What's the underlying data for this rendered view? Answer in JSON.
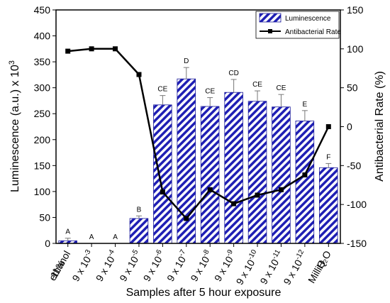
{
  "chart_data": {
    "type": "bar",
    "xlabel": "Samples after 5 hour exposure",
    "ylabel": "Luminescence (a.u.) x 10",
    "ylabel_sup": "3",
    "y2label": "Antibacterial Rate (%)",
    "ylim": [
      0,
      450
    ],
    "y2lim": [
      -150,
      150
    ],
    "yticks": [
      0,
      50,
      100,
      150,
      200,
      250,
      300,
      350,
      400,
      450
    ],
    "y2ticks": [
      -150,
      -100,
      -50,
      0,
      50,
      100,
      150
    ],
    "categories": [
      {
        "line1": "11%",
        "line1sup": "",
        "line2": "ethanol",
        "line2sup": ""
      },
      {
        "line1": "",
        "line1sup": "",
        "line2": "9 x 10",
        "line2sup": "-3"
      },
      {
        "line1": "",
        "line1sup": "",
        "line2": "9 x 10",
        "line2sup": "-4"
      },
      {
        "line1": "",
        "line1sup": "",
        "line2": "9 x 10",
        "line2sup": "-5"
      },
      {
        "line1": "",
        "line1sup": "",
        "line2": "9 x 10",
        "line2sup": "-6"
      },
      {
        "line1": "",
        "line1sup": "",
        "line2": "9 x 10",
        "line2sup": "-7"
      },
      {
        "line1": "",
        "line1sup": "",
        "line2": "9 x 10",
        "line2sup": "-8"
      },
      {
        "line1": "",
        "line1sup": "",
        "line2": "9 x 10",
        "line2sup": "-9"
      },
      {
        "line1": "",
        "line1sup": "",
        "line2": "9 x 10",
        "line2sup": "-10"
      },
      {
        "line1": "",
        "line1sup": "",
        "line2": "9 x 10",
        "line2sup": "-11"
      },
      {
        "line1": "",
        "line1sup": "",
        "line2": "9 x 10",
        "line2sup": "-12"
      },
      {
        "line1": "MilliQ",
        "line1sup": "",
        "line2": "H₂O",
        "line2sup": ""
      }
    ],
    "series": [
      {
        "name": "Luminescence",
        "type": "bar",
        "axis": "left",
        "values": [
          5,
          0,
          0,
          48,
          267,
          317,
          264,
          291,
          274,
          263,
          236,
          146
        ],
        "error": [
          5,
          0,
          0,
          5,
          18,
          22,
          17,
          25,
          20,
          24,
          20,
          8
        ],
        "labels": [
          "A",
          "A",
          "A",
          "B",
          "CE",
          "D",
          "CE",
          "CD",
          "CE",
          "CE",
          "E",
          "F"
        ]
      },
      {
        "name": "Antibacterial Rate",
        "type": "line",
        "axis": "right",
        "values": [
          97,
          100,
          100,
          67,
          -84,
          -118,
          -81,
          -99,
          -88,
          -81,
          -62,
          0
        ]
      }
    ],
    "legend_position": "top-right",
    "colors": {
      "bar": "#1f1fb4",
      "bar_border": "#1a1a99",
      "line": "#000000",
      "axis": "#000000"
    }
  }
}
